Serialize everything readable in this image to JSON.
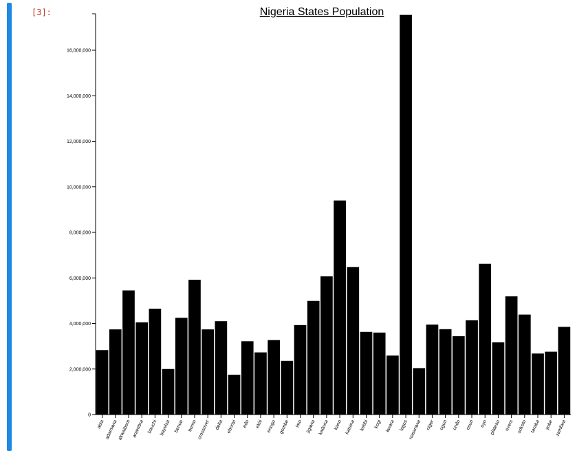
{
  "notebook": {
    "cell_prompt": "[3]:",
    "cell_bar_color": "#1e88e5",
    "prompt_color": "#c0392b"
  },
  "chart_data": {
    "type": "bar",
    "title": "Nigeria States Population",
    "xlabel": "",
    "ylabel": "",
    "ylim": [
      0,
      17600000
    ],
    "bar_color": "#000000",
    "y_ticks": [
      0,
      2000000,
      4000000,
      6000000,
      8000000,
      10000000,
      12000000,
      14000000,
      16000000
    ],
    "y_tick_labels": [
      "0",
      "2,000,000",
      "4,000,000",
      "6,000,000",
      "8,000,000",
      "10,000,000",
      "12,000,000",
      "14,000,000",
      "16,000,000"
    ],
    "categories": [
      "abia",
      "adamawa",
      "akwaibom",
      "anambra",
      "bauchi",
      "bayelsa",
      "benue",
      "borno",
      "crossriver",
      "delta",
      "ebonyi",
      "edo",
      "ekiti",
      "enugu",
      "gombe",
      "imo",
      "jigawa",
      "kaduna",
      "kano",
      "katsina",
      "kebbi",
      "kogi",
      "kwara",
      "lagos",
      "nasarawa",
      "niger",
      "ogun",
      "ondo",
      "osun",
      "oyo",
      "plateau",
      "rivers",
      "sokoto",
      "taraba",
      "yobe",
      "zamfara"
    ],
    "values": [
      2830000,
      3740000,
      5450000,
      4050000,
      4650000,
      2000000,
      4250000,
      5920000,
      3740000,
      4100000,
      1750000,
      3220000,
      2730000,
      3270000,
      2360000,
      3930000,
      4990000,
      6070000,
      9400000,
      6480000,
      3630000,
      3600000,
      2590000,
      17550000,
      2040000,
      3950000,
      3750000,
      3440000,
      4140000,
      6620000,
      3170000,
      5190000,
      4390000,
      2680000,
      2760000,
      3850000
    ]
  }
}
